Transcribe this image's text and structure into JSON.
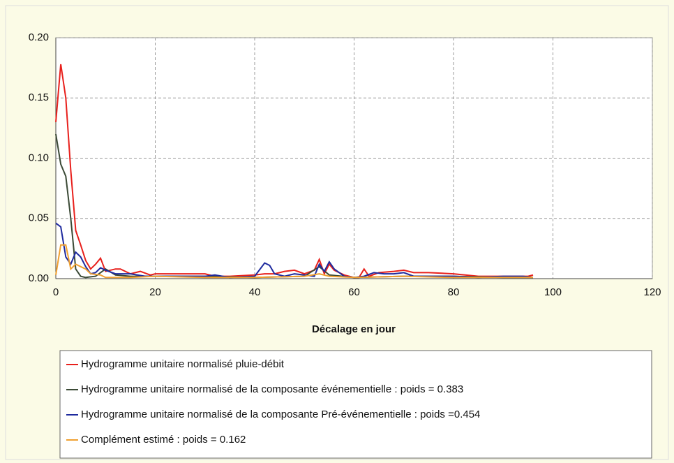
{
  "chart_data": {
    "type": "line",
    "xlabel": "Décalage en jour",
    "xlim": [
      0,
      120
    ],
    "xticks": [
      0,
      20,
      40,
      60,
      80,
      100,
      120
    ],
    "ylim": [
      0,
      0.2
    ],
    "yticks": [
      {
        "value": 0,
        "label": "0.00"
      },
      {
        "value": 0.05,
        "label": "0.05"
      },
      {
        "value": 0.1,
        "label": "0.10"
      },
      {
        "value": 0.15,
        "label": "0.15"
      },
      {
        "value": 0.2,
        "label": "0.20"
      }
    ],
    "grid": true,
    "series": [
      {
        "name": "Hydrogramme unitaire normalisé pluie-débit",
        "color": "#e8201c",
        "x": [
          0,
          1,
          2,
          3,
          4,
          5,
          6,
          7,
          8,
          9,
          10,
          12,
          13,
          15,
          17,
          19,
          20,
          25,
          30,
          32,
          35,
          40,
          42,
          44,
          46,
          48,
          50,
          52,
          53,
          54,
          55,
          56,
          58,
          60,
          61,
          62,
          63,
          65,
          68,
          70,
          72,
          75,
          80,
          85,
          90,
          95,
          96
        ],
        "values": [
          0.13,
          0.178,
          0.15,
          0.09,
          0.04,
          0.028,
          0.015,
          0.008,
          0.012,
          0.017,
          0.006,
          0.008,
          0.008,
          0.004,
          0.006,
          0.003,
          0.004,
          0.004,
          0.004,
          0.002,
          0.002,
          0.003,
          0.004,
          0.004,
          0.006,
          0.007,
          0.004,
          0.007,
          0.016,
          0.004,
          0.012,
          0.007,
          0.003,
          0.001,
          0.001,
          0.008,
          0.002,
          0.005,
          0.006,
          0.007,
          0.005,
          0.005,
          0.004,
          0.002,
          0.002,
          0.002,
          0.003
        ]
      },
      {
        "name": "Hydrogramme unitaire normalisé de la composante événementielle : poids = 0.383",
        "color": "#3b4a36",
        "x": [
          0,
          1,
          2,
          3,
          4,
          5,
          6,
          8,
          10,
          12,
          15,
          20,
          30,
          40,
          50,
          53,
          55,
          60,
          70,
          80,
          90,
          96
        ],
        "values": [
          0.12,
          0.095,
          0.085,
          0.05,
          0.008,
          0.002,
          0.001,
          0.002,
          0.008,
          0.003,
          0.002,
          0.002,
          0.002,
          0.001,
          0.002,
          0.01,
          0.003,
          0.001,
          0.002,
          0.002,
          0.001,
          0.001
        ]
      },
      {
        "name": "Hydrogramme unitaire normalisé de la composante Pré-événementielle : poids =0.454",
        "color": "#1e2a9e",
        "x": [
          0,
          1,
          2,
          3,
          4,
          5,
          6,
          7,
          8,
          9,
          10,
          12,
          15,
          18,
          20,
          30,
          32,
          35,
          40,
          42,
          43,
          44,
          46,
          48,
          50,
          52,
          53,
          54,
          55,
          56,
          58,
          60,
          62,
          64,
          66,
          68,
          70,
          72,
          80,
          85,
          90,
          94,
          96
        ],
        "values": [
          0.046,
          0.043,
          0.018,
          0.012,
          0.022,
          0.018,
          0.01,
          0.004,
          0.005,
          0.009,
          0.007,
          0.004,
          0.004,
          0.002,
          0.002,
          0.002,
          0.003,
          0.001,
          0.002,
          0.013,
          0.011,
          0.004,
          0.002,
          0.004,
          0.003,
          0.002,
          0.012,
          0.006,
          0.014,
          0.008,
          0.002,
          0.001,
          0.002,
          0.005,
          0.004,
          0.004,
          0.005,
          0.002,
          0.002,
          0.001,
          0.002,
          0.002,
          0.001
        ]
      },
      {
        "name": "Complément estimé : poids = 0.162",
        "color": "#f0a030",
        "x": [
          0,
          1,
          2,
          3,
          4,
          5,
          6,
          7,
          9,
          10,
          15,
          20,
          30,
          40,
          50,
          53,
          55,
          60,
          70,
          80,
          96
        ],
        "values": [
          0.003,
          0.028,
          0.028,
          0.008,
          0.012,
          0.01,
          0.008,
          0.004,
          0.003,
          0.001,
          0.001,
          0.002,
          0.001,
          0.001,
          0.002,
          0.004,
          0.002,
          0.001,
          0.002,
          0.001,
          0.001
        ]
      }
    ]
  }
}
